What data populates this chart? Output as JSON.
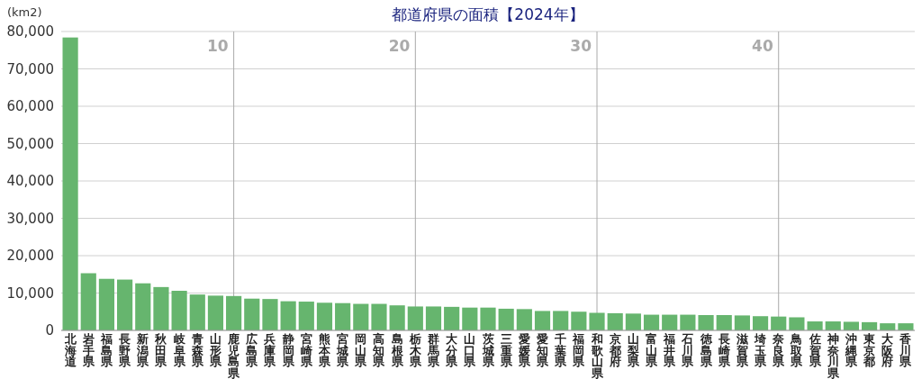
{
  "chart_data": {
    "type": "bar",
    "title": "都道府県の面積【2024年】",
    "ylabel": "(km2)",
    "categories": [
      "北海道",
      "岩手県",
      "福島県",
      "長野県",
      "新潟県",
      "秋田県",
      "岐阜県",
      "青森県",
      "山形県",
      "鹿児島県",
      "広島県",
      "兵庫県",
      "静岡県",
      "宮崎県",
      "熊本県",
      "宮城県",
      "岡山県",
      "高知県",
      "島根県",
      "栃木県",
      "群馬県",
      "大分県",
      "山口県",
      "茨城県",
      "三重県",
      "愛媛県",
      "愛知県",
      "千葉県",
      "福岡県",
      "和歌山県",
      "京都府",
      "山梨県",
      "富山県",
      "福井県",
      "石川県",
      "徳島県",
      "長崎県",
      "滋賀県",
      "埼玉県",
      "奈良県",
      "鳥取県",
      "佐賀県",
      "神奈川県",
      "沖縄県",
      "東京都",
      "大阪府",
      "香川県"
    ],
    "values": [
      78400,
      15300,
      13800,
      13600,
      12600,
      11600,
      10600,
      9600,
      9300,
      9200,
      8500,
      8400,
      7800,
      7700,
      7400,
      7300,
      7100,
      7100,
      6700,
      6400,
      6400,
      6300,
      6100,
      6100,
      5800,
      5700,
      5200,
      5200,
      5000,
      4700,
      4600,
      4500,
      4200,
      4200,
      4200,
      4100,
      4100,
      4000,
      3800,
      3700,
      3500,
      2400,
      2400,
      2300,
      2200,
      1900,
      1900
    ],
    "color": "#66b56e",
    "ylim": [
      0,
      80000
    ],
    "yticks": [
      {
        "value": 0,
        "label": "0"
      },
      {
        "value": 10000,
        "label": "10,000"
      },
      {
        "value": 20000,
        "label": "20,000"
      },
      {
        "value": 30000,
        "label": "30,000"
      },
      {
        "value": 40000,
        "label": "40,000"
      },
      {
        "value": 50000,
        "label": "50,000"
      },
      {
        "value": 60000,
        "label": "60,000"
      },
      {
        "value": 70000,
        "label": "70,000"
      },
      {
        "value": 80000,
        "label": "80,000"
      }
    ],
    "grid": "y",
    "ref_lines": [
      {
        "axis": "x",
        "value": "鹿児島県",
        "label": "10",
        "color": "#aaaaaa"
      },
      {
        "axis": "x",
        "value": "栃木県",
        "label": "20",
        "color": "#aaaaaa"
      },
      {
        "axis": "x",
        "value": "和歌山県",
        "label": "30",
        "color": "#aaaaaa"
      },
      {
        "axis": "x",
        "value": "奈良県",
        "label": "40",
        "color": "#aaaaaa"
      }
    ]
  }
}
